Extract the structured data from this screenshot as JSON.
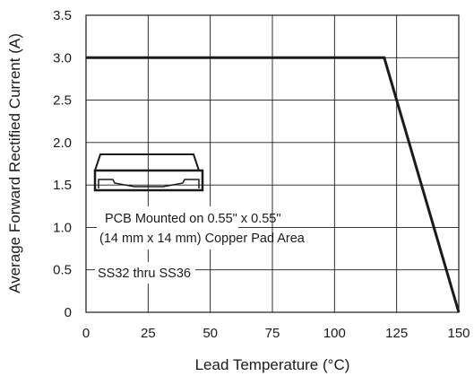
{
  "chart_data": {
    "type": "line",
    "xlabel": "Lead Temperature (°C)",
    "ylabel": "Average Forward Rectified Current (A)",
    "xlim": [
      0,
      150
    ],
    "ylim": [
      0,
      3.5
    ],
    "x_ticks": [
      "0",
      "25",
      "50",
      "75",
      "100",
      "125",
      "150"
    ],
    "y_ticks": [
      "0",
      "0.5",
      "1.0",
      "1.5",
      "2.0",
      "2.5",
      "3.0",
      "3.5"
    ],
    "grid": true,
    "series": [
      {
        "x": [
          0,
          120,
          150
        ],
        "values": [
          3.0,
          3.0,
          0
        ]
      }
    ],
    "annotations": [
      "PCB Mounted on 0.55\" x 0.55\"",
      "(14 mm x 14 mm) Copper Pad Area",
      "SS32 thru SS36"
    ],
    "inset_icon": "smd-package-outline-icon"
  }
}
